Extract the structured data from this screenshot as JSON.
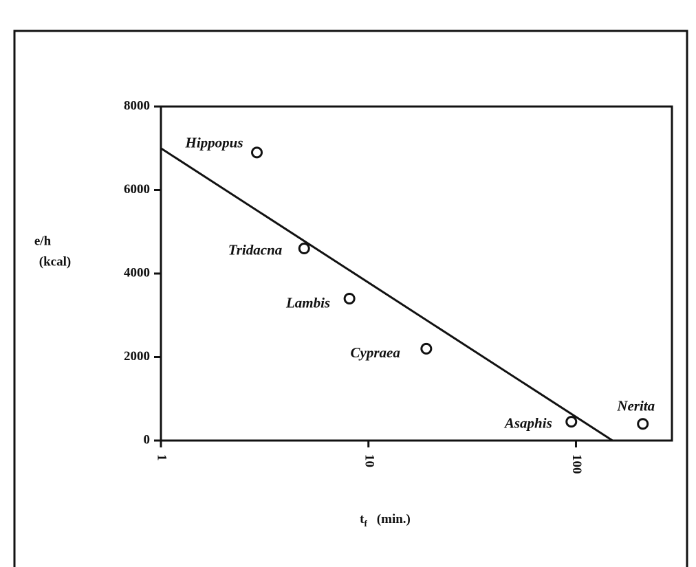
{
  "chart_data": {
    "type": "scatter",
    "y_label": [
      "e/h",
      "(kcal)"
    ],
    "x_label": "t",
    "x_label_sub": "f",
    "x_label_unit": "(min.)",
    "xscale": "log",
    "xlim": [
      1,
      290
    ],
    "xticks": [
      1,
      10,
      100
    ],
    "ylim": [
      0,
      8000
    ],
    "yticks": [
      0,
      2000,
      4000,
      6000,
      8000
    ],
    "labels": [
      "Hippopus",
      "Tridacna",
      "Lambis",
      "Cypraea",
      "Asaphis",
      "Nerita"
    ],
    "x": [
      2.9,
      4.9,
      8.1,
      19,
      95,
      210
    ],
    "values": [
      6900,
      4600,
      3400,
      2200,
      450,
      400
    ],
    "fit_line": {
      "x": [
        1,
        150
      ],
      "values": [
        7000,
        0
      ]
    },
    "color": "#111"
  }
}
